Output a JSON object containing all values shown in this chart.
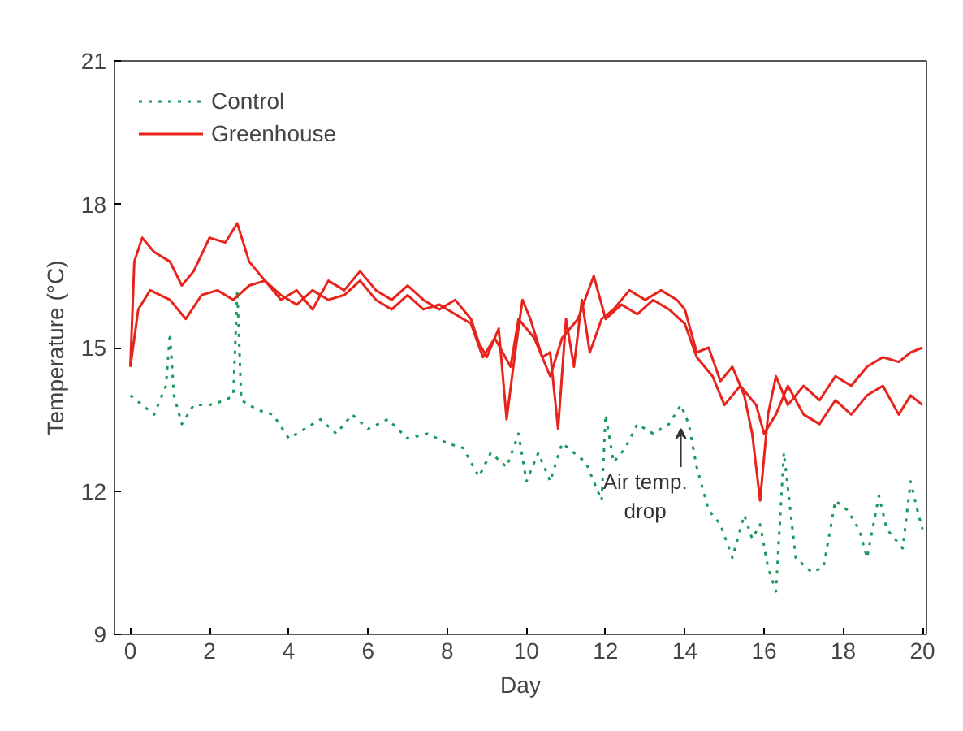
{
  "chart_data": {
    "type": "line",
    "xlabel": "Day",
    "ylabel": "Temperature (°C)",
    "xlim": [
      -0.4,
      20.1
    ],
    "ylim": [
      9,
      21
    ],
    "xticks": [
      0,
      2,
      4,
      6,
      8,
      10,
      12,
      14,
      16,
      18,
      20
    ],
    "yticks": [
      9,
      12,
      15,
      18,
      21
    ],
    "grid": false,
    "legend": "top left",
    "annotations": [
      {
        "text": "Air temp. drop",
        "x": 13.9,
        "y": 13.3
      }
    ],
    "series": [
      {
        "name": "Control",
        "color": "#1a9a5a",
        "line_style": "dotted",
        "x": [
          0,
          0.3,
          0.6,
          0.9,
          1.0,
          1.1,
          1.3,
          1.6,
          2.0,
          2.4,
          2.6,
          2.7,
          2.8,
          3.2,
          3.6,
          4.0,
          4.4,
          4.8,
          5.2,
          5.6,
          6.0,
          6.5,
          7.0,
          7.5,
          8.0,
          8.4,
          8.8,
          9.1,
          9.5,
          9.8,
          10.0,
          10.3,
          10.6,
          10.9,
          11.2,
          11.5,
          11.9,
          12.0,
          12.2,
          12.5,
          12.8,
          13.2,
          13.6,
          13.9,
          14.1,
          14.3,
          14.6,
          14.9,
          15.2,
          15.5,
          15.7,
          15.9,
          16.1,
          16.3,
          16.5,
          16.8,
          17.2,
          17.5,
          17.8,
          18.1,
          18.4,
          18.6,
          18.9,
          19.1,
          19.5,
          19.7,
          19.9,
          20.0
        ],
        "values": [
          14.0,
          13.8,
          13.6,
          14.2,
          15.3,
          14.0,
          13.4,
          13.8,
          13.8,
          13.9,
          14.0,
          16.2,
          13.9,
          13.7,
          13.6,
          13.1,
          13.3,
          13.5,
          13.2,
          13.6,
          13.3,
          13.5,
          13.1,
          13.2,
          13.0,
          12.9,
          12.3,
          12.8,
          12.5,
          13.2,
          12.2,
          12.8,
          12.2,
          13.0,
          12.8,
          12.6,
          11.8,
          13.6,
          12.6,
          12.9,
          13.4,
          13.2,
          13.4,
          13.8,
          13.4,
          12.5,
          11.6,
          11.3,
          10.6,
          11.5,
          11.0,
          11.3,
          10.4,
          9.9,
          12.8,
          10.6,
          10.3,
          10.4,
          11.8,
          11.6,
          11.2,
          10.6,
          11.9,
          11.2,
          10.8,
          12.2,
          11.5,
          11.2
        ]
      },
      {
        "name": "Greenhouse",
        "color": "#e8231b",
        "line_style": "solid",
        "x": [
          0,
          0.1,
          0.3,
          0.6,
          1.0,
          1.3,
          1.6,
          2.0,
          2.4,
          2.7,
          3.0,
          3.4,
          3.8,
          4.2,
          4.6,
          5.0,
          5.4,
          5.8,
          6.2,
          6.6,
          7.0,
          7.4,
          7.8,
          8.2,
          8.6,
          8.8,
          9.0,
          9.3,
          9.5,
          9.7,
          9.9,
          10.1,
          10.4,
          10.6,
          10.8,
          11.0,
          11.2,
          11.4,
          11.6,
          11.9,
          12.2,
          12.6,
          13.0,
          13.4,
          13.8,
          14.0,
          14.3,
          14.6,
          14.9,
          15.2,
          15.5,
          15.7,
          15.9,
          16.1,
          16.3,
          16.6,
          17.0,
          17.4,
          17.8,
          18.2,
          18.6,
          19.0,
          19.4,
          19.7,
          20.0
        ],
        "values": [
          14.6,
          16.8,
          17.3,
          17.0,
          16.8,
          16.3,
          16.6,
          17.3,
          17.2,
          17.6,
          16.8,
          16.4,
          16.0,
          16.2,
          15.8,
          16.4,
          16.2,
          16.6,
          16.2,
          16.0,
          16.3,
          16.0,
          15.8,
          16.0,
          15.6,
          15.1,
          14.8,
          15.4,
          13.5,
          14.8,
          16.0,
          15.6,
          14.8,
          14.9,
          13.3,
          15.6,
          14.6,
          16.0,
          14.9,
          15.6,
          15.8,
          16.2,
          16.0,
          16.2,
          16.0,
          15.8,
          14.9,
          15.0,
          14.3,
          14.6,
          14.0,
          13.2,
          11.8,
          13.6,
          14.4,
          13.8,
          14.2,
          13.9,
          14.4,
          14.2,
          14.6,
          14.8,
          14.7,
          14.9,
          15.0
        ]
      },
      {
        "color": "#e8231b",
        "line_style": "solid",
        "x": [
          0,
          0.2,
          0.5,
          1.0,
          1.4,
          1.8,
          2.2,
          2.6,
          3.0,
          3.4,
          3.8,
          4.2,
          4.6,
          5.0,
          5.4,
          5.8,
          6.2,
          6.6,
          7.0,
          7.4,
          7.8,
          8.2,
          8.6,
          8.9,
          9.2,
          9.6,
          9.8,
          10.2,
          10.6,
          10.9,
          11.3,
          11.7,
          12.0,
          12.4,
          12.8,
          13.2,
          13.6,
          14.0,
          14.3,
          14.7,
          15.0,
          15.4,
          15.8,
          16.0,
          16.3,
          16.6,
          17.0,
          17.4,
          17.8,
          18.2,
          18.6,
          19.0,
          19.4,
          19.7,
          20.0
        ],
        "values": [
          14.6,
          15.8,
          16.2,
          16.0,
          15.6,
          16.1,
          16.2,
          16.0,
          16.3,
          16.4,
          16.1,
          15.9,
          16.2,
          16.0,
          16.1,
          16.4,
          16.0,
          15.8,
          16.1,
          15.8,
          15.9,
          15.7,
          15.5,
          14.8,
          15.2,
          14.6,
          15.6,
          15.2,
          14.4,
          15.2,
          15.6,
          16.5,
          15.6,
          15.9,
          15.7,
          16.0,
          15.8,
          15.5,
          14.8,
          14.4,
          13.8,
          14.2,
          13.8,
          13.2,
          13.6,
          14.2,
          13.6,
          13.4,
          13.9,
          13.6,
          14.0,
          14.2,
          13.6,
          14.0,
          13.8
        ]
      }
    ]
  }
}
